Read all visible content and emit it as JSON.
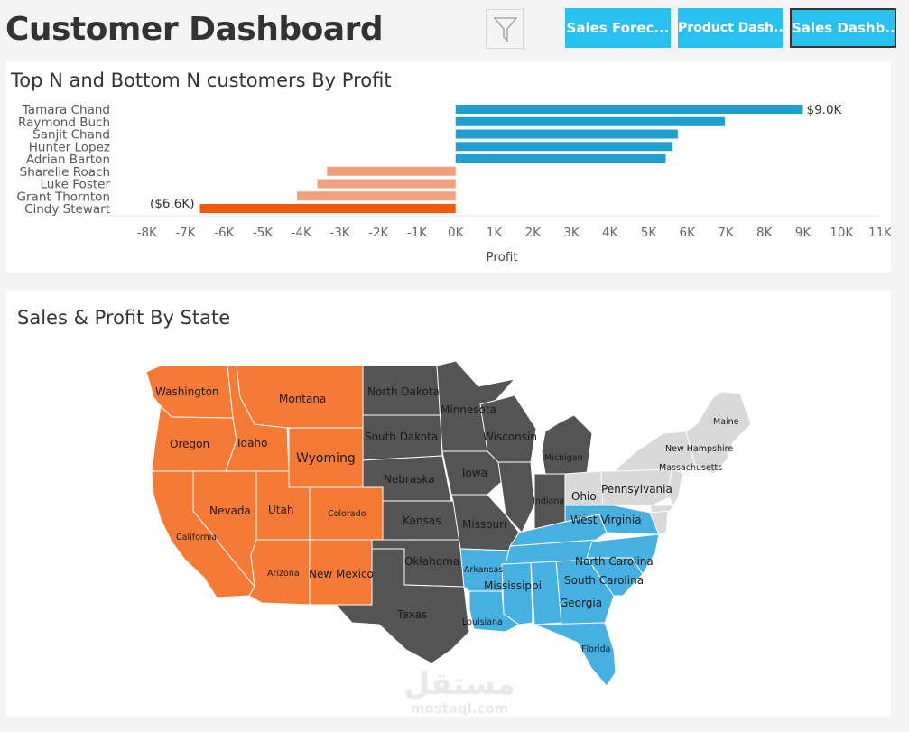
{
  "header": {
    "title": "Customer Dashboard",
    "filter_icon": "filter-icon",
    "nav": [
      {
        "label": "Sales Forec...",
        "active": false
      },
      {
        "label": "Product Dash...",
        "active": false
      },
      {
        "label": "Sales Dashb...",
        "active": true
      }
    ]
  },
  "colors": {
    "accent": "#29c1ef",
    "positive_bar": "#1f9fd0",
    "negative_bar": "#f0a07c",
    "min_bar": "#f05a0c",
    "map_orange": "#f57a35",
    "map_dark": "#545454",
    "map_blue": "#46b0e0",
    "map_light": "#d9d9d9"
  },
  "profit_chart": {
    "title": "Top N and Bottom N customers By Profit",
    "chart_data": {
      "type": "bar",
      "orientation": "horizontal",
      "categories": [
        "Tamara Chand",
        "Raymond Buch",
        "Sanjit Chand",
        "Hunter Lopez",
        "Adrian Barton",
        "Sharelle Roach",
        "Luke Foster",
        "Grant Thornton",
        "Cindy Stewart"
      ],
      "values": [
        9000,
        6976,
        5757,
        5622,
        5445,
        -3333,
        -3584,
        -4109,
        -6626
      ],
      "xlabel": "Profit",
      "ylabel": "",
      "xlim": [
        -9000,
        11000
      ],
      "ticks": [
        "-8K",
        "-7K",
        "-6K",
        "-5K",
        "-4K",
        "-3K",
        "-2K",
        "-1K",
        "0K",
        "1K",
        "2K",
        "3K",
        "4K",
        "5K",
        "6K",
        "7K",
        "8K",
        "9K",
        "10K",
        "11K"
      ],
      "tick_values": [
        -8000,
        -7000,
        -6000,
        -5000,
        -4000,
        -3000,
        -2000,
        -1000,
        0,
        1000,
        2000,
        3000,
        4000,
        5000,
        6000,
        7000,
        8000,
        9000,
        10000,
        11000
      ],
      "data_labels": {
        "max": "$9.0K",
        "min": "($6.6K)"
      }
    }
  },
  "map": {
    "title": "Sales & Profit By State",
    "states": [
      {
        "name": "Washington",
        "group": "orange"
      },
      {
        "name": "Oregon",
        "group": "orange"
      },
      {
        "name": "California",
        "group": "orange"
      },
      {
        "name": "Idaho",
        "group": "orange"
      },
      {
        "name": "Nevada",
        "group": "orange"
      },
      {
        "name": "Montana",
        "group": "orange"
      },
      {
        "name": "Wyoming",
        "group": "orange"
      },
      {
        "name": "Utah",
        "group": "orange"
      },
      {
        "name": "Colorado",
        "group": "orange"
      },
      {
        "name": "Arizona",
        "group": "orange"
      },
      {
        "name": "New Mexico",
        "group": "orange"
      },
      {
        "name": "North Dakota",
        "group": "dark"
      },
      {
        "name": "South Dakota",
        "group": "dark"
      },
      {
        "name": "Nebraska",
        "group": "dark"
      },
      {
        "name": "Kansas",
        "group": "dark"
      },
      {
        "name": "Oklahoma",
        "group": "dark"
      },
      {
        "name": "Texas",
        "group": "dark"
      },
      {
        "name": "Minnesota",
        "group": "dark"
      },
      {
        "name": "Iowa",
        "group": "dark"
      },
      {
        "name": "Missouri",
        "group": "dark"
      },
      {
        "name": "Wisconsin",
        "group": "dark"
      },
      {
        "name": "Michigan",
        "group": "dark"
      },
      {
        "name": "Indiana",
        "group": "dark"
      },
      {
        "name": "Arkansas",
        "group": "blue"
      },
      {
        "name": "Louisiana",
        "group": "blue"
      },
      {
        "name": "Mississippi",
        "group": "blue"
      },
      {
        "name": "Georgia",
        "group": "blue"
      },
      {
        "name": "Florida",
        "group": "blue"
      },
      {
        "name": "North Carolina",
        "group": "blue"
      },
      {
        "name": "South Carolina",
        "group": "blue"
      },
      {
        "name": "West Virginia",
        "group": "blue"
      },
      {
        "name": "Ohio",
        "group": "light"
      },
      {
        "name": "Pennsylvania",
        "group": "light"
      },
      {
        "name": "New Hampshire",
        "group": "light"
      },
      {
        "name": "Massachusetts",
        "group": "light"
      },
      {
        "name": "Maine",
        "group": "light"
      }
    ]
  },
  "watermark": {
    "arabic": "مستقل",
    "latin": "mostaql.com"
  }
}
